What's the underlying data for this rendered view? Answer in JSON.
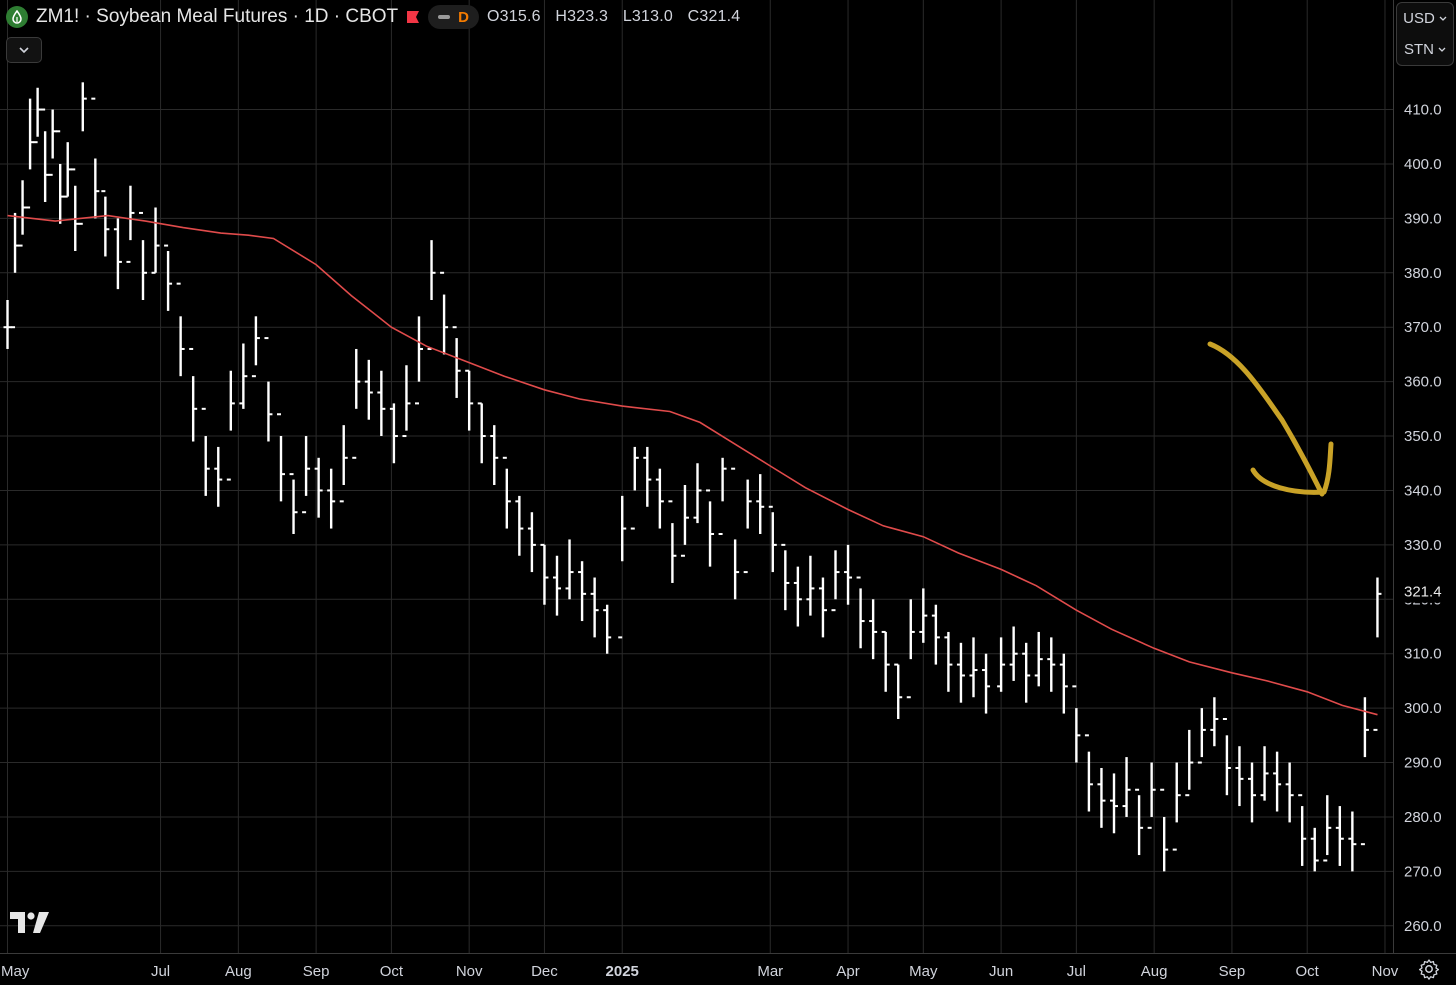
{
  "header": {
    "title": "ZM1! · Soybean Meal Futures · 1D · CBOT",
    "pill_label": "D",
    "ohlc": {
      "open": "O315.6",
      "high": "H323.3",
      "low": "L313.0",
      "close": "C321.4"
    }
  },
  "scale": {
    "currency": "USD",
    "unit": "STN"
  },
  "icons": {
    "symbol": "droplet-icon",
    "flag": "flag-icon",
    "collapse": "chevron-down-icon",
    "logo": "tradingview-logo-icon",
    "settings": "gear-icon"
  },
  "colors": {
    "background": "#000000",
    "grid": "#2a2a2a",
    "price": "#ffffff",
    "ma": "#e04b4b",
    "annotation": "#c9a227",
    "last_price_label": "#e8e8e8"
  },
  "chart_data": {
    "type": "bar",
    "style": "ohlc",
    "ylim": [
      255,
      418
    ],
    "x_ticks": [
      "May",
      "Jul",
      "Aug",
      "Sep",
      "Oct",
      "Nov",
      "Dec",
      "2025",
      "Mar",
      "Apr",
      "May",
      "Jun",
      "Jul",
      "Aug",
      "Sep",
      "Oct",
      "Nov"
    ],
    "y_ticks": [
      410.0,
      400.0,
      390.0,
      380.0,
      370.0,
      360.0,
      350.0,
      340.0,
      330.0,
      320.0,
      310.0,
      300.0,
      290.0,
      280.0,
      270.0,
      260.0
    ],
    "last_price": 321.4,
    "last_price_label": "321.4",
    "series": [
      {
        "kind": "price",
        "x": [
          "2024-05-01",
          "2024-05-04",
          "2024-05-07",
          "2024-05-10",
          "2024-05-13",
          "2024-05-16",
          "2024-05-19",
          "2024-05-22",
          "2024-05-25",
          "2024-05-28",
          "2024-05-31",
          "2024-06-05",
          "2024-06-09",
          "2024-06-14",
          "2024-06-19",
          "2024-06-24",
          "2024-06-29",
          "2024-07-04",
          "2024-07-09",
          "2024-07-14",
          "2024-07-19",
          "2024-07-24",
          "2024-07-29",
          "2024-08-03",
          "2024-08-08",
          "2024-08-13",
          "2024-08-18",
          "2024-08-23",
          "2024-08-28",
          "2024-09-02",
          "2024-09-07",
          "2024-09-12",
          "2024-09-17",
          "2024-09-22",
          "2024-09-27",
          "2024-10-02",
          "2024-10-07",
          "2024-10-12",
          "2024-10-17",
          "2024-10-22",
          "2024-10-27",
          "2024-11-01",
          "2024-11-06",
          "2024-11-11",
          "2024-11-16",
          "2024-11-21",
          "2024-11-26",
          "2024-12-01",
          "2024-12-06",
          "2024-12-11",
          "2024-12-16",
          "2024-12-21",
          "2024-12-26",
          "2025-01-01",
          "2025-01-06",
          "2025-01-11",
          "2025-01-16",
          "2025-01-21",
          "2025-01-26",
          "2025-01-31",
          "2025-02-05",
          "2025-02-10",
          "2025-02-15",
          "2025-02-20",
          "2025-02-25",
          "2025-03-02",
          "2025-03-07",
          "2025-03-12",
          "2025-03-17",
          "2025-03-22",
          "2025-03-27",
          "2025-04-01",
          "2025-04-06",
          "2025-04-11",
          "2025-04-16",
          "2025-04-21",
          "2025-04-26",
          "2025-05-01",
          "2025-05-06",
          "2025-05-11",
          "2025-05-16",
          "2025-05-21",
          "2025-05-26",
          "2025-06-01",
          "2025-06-06",
          "2025-06-11",
          "2025-06-16",
          "2025-06-21",
          "2025-06-26",
          "2025-07-01",
          "2025-07-06",
          "2025-07-11",
          "2025-07-16",
          "2025-07-21",
          "2025-07-26",
          "2025-07-31",
          "2025-08-05",
          "2025-08-10",
          "2025-08-15",
          "2025-08-20",
          "2025-08-25",
          "2025-08-30",
          "2025-09-04",
          "2025-09-09",
          "2025-09-14",
          "2025-09-19",
          "2025-09-24",
          "2025-09-29",
          "2025-10-04",
          "2025-10-09",
          "2025-10-14",
          "2025-10-19",
          "2025-10-24",
          "2025-10-29"
        ],
        "close": [
          370,
          385,
          392,
          404,
          410,
          398,
          406,
          394,
          399,
          389,
          412,
          395,
          388,
          382,
          391,
          380,
          385,
          378,
          366,
          355,
          344,
          342,
          356,
          361,
          368,
          354,
          343,
          336,
          344,
          340,
          338,
          346,
          360,
          358,
          355,
          350,
          356,
          366,
          380,
          370,
          362,
          356,
          350,
          346,
          338,
          333,
          330,
          324,
          322,
          325,
          321,
          318,
          313,
          333,
          346,
          342,
          338,
          328,
          335,
          340,
          332,
          344,
          325,
          338,
          337,
          330,
          323,
          320,
          322,
          318,
          325,
          324,
          316,
          314,
          308,
          302,
          314,
          317,
          313,
          308,
          306,
          307,
          304,
          308,
          310,
          306,
          309,
          308,
          304,
          295,
          286,
          283,
          282,
          285,
          278,
          285,
          274,
          284,
          290,
          296,
          298,
          289,
          287,
          284,
          288,
          286,
          284,
          276,
          272,
          278,
          276,
          275,
          296,
          321
        ],
        "high": [
          375,
          391,
          397,
          412,
          414,
          406,
          410,
          400,
          404,
          396,
          415,
          401,
          394,
          390,
          396,
          386,
          392,
          384,
          372,
          361,
          350,
          348,
          362,
          367,
          372,
          360,
          350,
          342,
          350,
          346,
          344,
          352,
          366,
          364,
          362,
          356,
          363,
          372,
          386,
          376,
          368,
          362,
          356,
          352,
          344,
          339,
          336,
          330,
          328,
          331,
          327,
          324,
          319,
          339,
          348,
          348,
          344,
          334,
          341,
          345,
          338,
          346,
          331,
          342,
          343,
          336,
          329,
          326,
          328,
          324,
          329,
          330,
          322,
          320,
          314,
          308,
          320,
          322,
          319,
          314,
          312,
          313,
          310,
          313,
          315,
          312,
          314,
          313,
          310,
          300,
          292,
          289,
          288,
          291,
          284,
          290,
          280,
          290,
          296,
          300,
          302,
          295,
          293,
          290,
          293,
          292,
          290,
          282,
          278,
          284,
          282,
          281,
          302,
          324
        ],
        "low": [
          366,
          380,
          387,
          399,
          405,
          393,
          401,
          389,
          394,
          384,
          406,
          390,
          383,
          377,
          386,
          375,
          380,
          373,
          361,
          349,
          339,
          337,
          351,
          355,
          363,
          349,
          338,
          332,
          339,
          335,
          333,
          341,
          355,
          353,
          350,
          345,
          351,
          360,
          375,
          365,
          357,
          351,
          345,
          341,
          333,
          328,
          325,
          319,
          317,
          320,
          316,
          313,
          310,
          327,
          340,
          337,
          333,
          323,
          330,
          334,
          326,
          338,
          320,
          333,
          332,
          325,
          318,
          315,
          317,
          313,
          320,
          319,
          311,
          309,
          303,
          298,
          309,
          312,
          308,
          303,
          301,
          302,
          299,
          303,
          305,
          301,
          304,
          303,
          299,
          290,
          281,
          278,
          277,
          280,
          273,
          280,
          270,
          279,
          285,
          291,
          293,
          284,
          282,
          279,
          283,
          281,
          279,
          271,
          270,
          273,
          271,
          270,
          291,
          313
        ]
      },
      {
        "kind": "moving-average",
        "x": [
          "2024-05-01",
          "2024-05-20",
          "2024-06-10",
          "2024-06-25",
          "2024-07-10",
          "2024-07-25",
          "2024-08-05",
          "2024-08-15",
          "2024-09-01",
          "2024-09-15",
          "2024-10-01",
          "2024-10-15",
          "2024-11-01",
          "2024-11-15",
          "2024-12-01",
          "2024-12-15",
          "2025-01-01",
          "2025-01-20",
          "2025-02-01",
          "2025-02-15",
          "2025-03-01",
          "2025-03-15",
          "2025-04-01",
          "2025-04-15",
          "2025-05-01",
          "2025-05-15",
          "2025-06-01",
          "2025-06-15",
          "2025-07-01",
          "2025-07-15",
          "2025-08-01",
          "2025-08-15",
          "2025-09-01",
          "2025-09-15",
          "2025-10-01",
          "2025-10-15",
          "2025-10-29"
        ],
        "y": [
          390.5,
          389.5,
          390.5,
          389.5,
          388.3,
          387.3,
          386.9,
          386.3,
          381.5,
          375.8,
          370.0,
          366.5,
          363.5,
          361.0,
          358.5,
          356.8,
          355.5,
          354.5,
          352.5,
          348.5,
          344.5,
          340.5,
          336.5,
          333.5,
          331.5,
          328.5,
          325.5,
          322.5,
          318.0,
          314.5,
          311.0,
          308.5,
          306.5,
          305.0,
          303.0,
          300.5,
          298.8
        ]
      }
    ],
    "annotations": [
      {
        "kind": "hand-drawn-arrow",
        "pointing_at": "moving-average"
      }
    ]
  }
}
